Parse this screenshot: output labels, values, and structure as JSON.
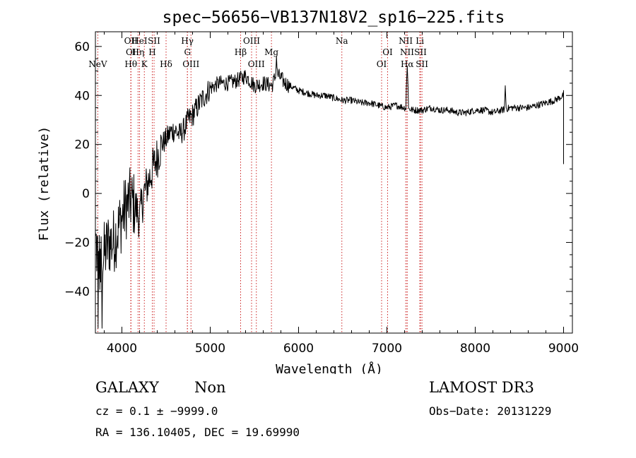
{
  "chart_data": {
    "type": "line",
    "title": "spec−56656−VB137N18V2_sp16−225.fits",
    "xlabel": "Wavelength (Å)",
    "ylabel": "Flux (relative)",
    "xlim": [
      3700,
      9100
    ],
    "ylim": [
      -57,
      66
    ],
    "xticks": [
      4000,
      5000,
      6000,
      7000,
      8000,
      9000
    ],
    "yticks": [
      -40,
      -20,
      0,
      20,
      40,
      60
    ],
    "grid": false,
    "line_color": "#000000",
    "marker_color": "#cc2222",
    "series": [
      {
        "name": "flux",
        "anchors": [
          [
            3700,
            -20
          ],
          [
            3760,
            -30
          ],
          [
            3800,
            -25
          ],
          [
            3850,
            -20
          ],
          [
            3900,
            -20
          ],
          [
            3950,
            -15
          ],
          [
            4000,
            -10
          ],
          [
            4050,
            -5
          ],
          [
            4100,
            -3
          ],
          [
            4150,
            -5
          ],
          [
            4200,
            -10
          ],
          [
            4250,
            0
          ],
          [
            4300,
            5
          ],
          [
            4350,
            10
          ],
          [
            4400,
            15
          ],
          [
            4450,
            20
          ],
          [
            4500,
            22
          ],
          [
            4550,
            25
          ],
          [
            4600,
            26
          ],
          [
            4650,
            24
          ],
          [
            4700,
            26
          ],
          [
            4750,
            30
          ],
          [
            4800,
            32
          ],
          [
            4900,
            38
          ],
          [
            5000,
            43
          ],
          [
            5100,
            45
          ],
          [
            5200,
            45
          ],
          [
            5300,
            46
          ],
          [
            5350,
            47
          ],
          [
            5400,
            48
          ],
          [
            5450,
            46
          ],
          [
            5500,
            44
          ],
          [
            5600,
            45
          ],
          [
            5700,
            44
          ],
          [
            5750,
            49
          ],
          [
            5800,
            47
          ],
          [
            5850,
            45
          ],
          [
            5900,
            44
          ],
          [
            6000,
            42
          ],
          [
            6100,
            41
          ],
          [
            6200,
            40
          ],
          [
            6300,
            40
          ],
          [
            6400,
            39
          ],
          [
            6500,
            38
          ],
          [
            6600,
            38
          ],
          [
            6700,
            37
          ],
          [
            6800,
            37
          ],
          [
            6900,
            36
          ],
          [
            7000,
            35
          ],
          [
            7100,
            36
          ],
          [
            7200,
            35
          ],
          [
            7300,
            34
          ],
          [
            7400,
            34
          ],
          [
            7500,
            35
          ],
          [
            7600,
            34
          ],
          [
            7700,
            34
          ],
          [
            7800,
            33
          ],
          [
            7900,
            33
          ],
          [
            8000,
            34
          ],
          [
            8100,
            34
          ],
          [
            8200,
            33
          ],
          [
            8300,
            34
          ],
          [
            8400,
            35
          ],
          [
            8500,
            35
          ],
          [
            8600,
            35
          ],
          [
            8700,
            36
          ],
          [
            8800,
            37
          ],
          [
            8900,
            38
          ],
          [
            9000,
            40
          ]
        ],
        "spikes": [
          {
            "x": 5750,
            "y": 56
          },
          {
            "x": 7230,
            "y": 52
          },
          {
            "x": 8340,
            "y": 44
          },
          {
            "x": 9000,
            "y": 42
          }
        ],
        "end_drop": {
          "x": 9000,
          "y": 12
        }
      }
    ],
    "lines": [
      {
        "wave": 3727,
        "row": 3,
        "label": "NeV"
      },
      {
        "wave": 4102,
        "row": 3,
        "label": "Hθ"
      },
      {
        "wave": 4102,
        "row": 1,
        "label": "OII"
      },
      {
        "wave": 4102,
        "row": 2,
        "label": "OI"
      },
      {
        "wave": 4183,
        "row": 2,
        "label": "Hη"
      },
      {
        "wave": 4200,
        "row": 1,
        "label": "HeI"
      },
      {
        "wave": 4254,
        "row": 3,
        "label": "K"
      },
      {
        "wave": 4344,
        "row": 2,
        "label": "H"
      },
      {
        "wave": 4364,
        "row": 1,
        "label": "SII"
      },
      {
        "wave": 4500,
        "row": 3,
        "label": "Hδ"
      },
      {
        "wave": 4741,
        "row": 1,
        "label": "Hγ"
      },
      {
        "wave": 4742,
        "row": 2,
        "label": "G"
      },
      {
        "wave": 4782,
        "row": 3,
        "label": "OIII"
      },
      {
        "wave": 5344,
        "row": 2,
        "label": "Hβ"
      },
      {
        "wave": 5468,
        "row": 1,
        "label": "OIII"
      },
      {
        "wave": 5522,
        "row": 3,
        "label": "OIII"
      },
      {
        "wave": 5693,
        "row": 2,
        "label": "Mg"
      },
      {
        "wave": 6490,
        "row": 1,
        "label": "Na"
      },
      {
        "wave": 6940,
        "row": 3,
        "label": "OI"
      },
      {
        "wave": 7008,
        "row": 2,
        "label": "OI"
      },
      {
        "wave": 7213,
        "row": 1,
        "label": "NII"
      },
      {
        "wave": 7228,
        "row": 2,
        "label": "NII"
      },
      {
        "wave": 7230,
        "row": 3,
        "label": "Hα"
      },
      {
        "wave": 7373,
        "row": 1,
        "label": "Li"
      },
      {
        "wave": 7380,
        "row": 2,
        "label": "SII"
      },
      {
        "wave": 7397,
        "row": 3,
        "label": "SII"
      }
    ]
  },
  "footer": {
    "object_class": "GALAXY",
    "subclass": "Non",
    "survey": "LAMOST DR3",
    "cz_line": "cz = 0.1 ± −9999.0",
    "obs_date": "Obs−Date: 20131229",
    "coords": "RA = 136.10405, DEC =  19.69990"
  }
}
